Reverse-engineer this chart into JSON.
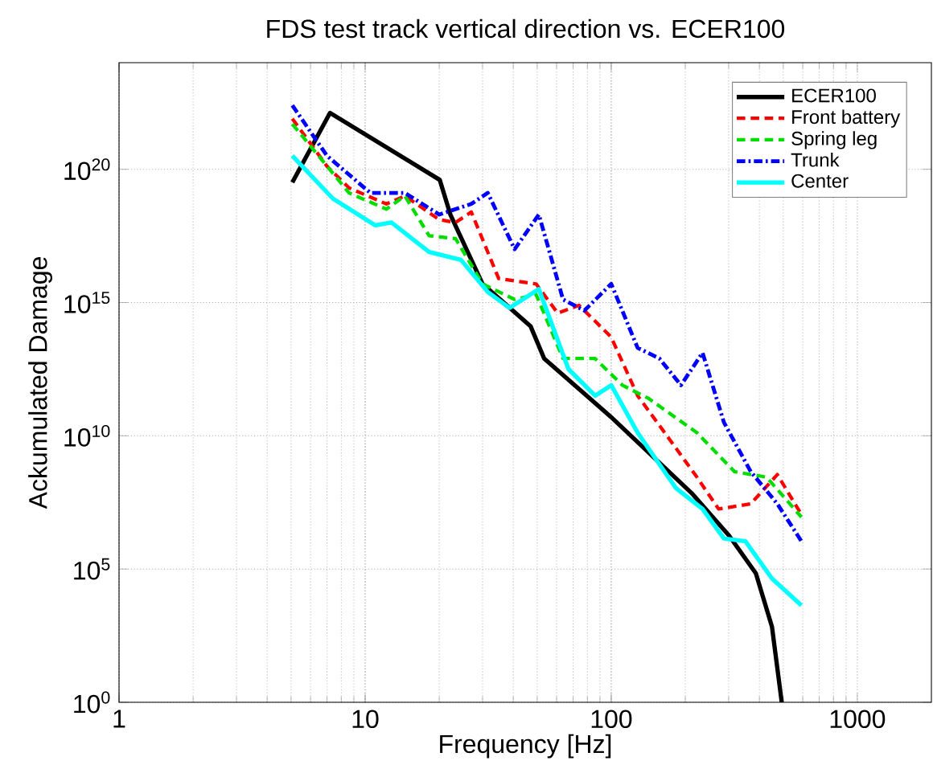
{
  "chart_data": {
    "type": "line",
    "title": "FDS test track vertical direction vs. ECER100",
    "xlabel": "Frequency [Hz]",
    "ylabel": "Ackumulated Damage",
    "log": "xy",
    "grid": true,
    "legend": "top right",
    "xlim": [
      1,
      2000
    ],
    "ylim": [
      1,
      1e+24
    ],
    "xticks": [
      1,
      10,
      100,
      1000
    ],
    "yticks": [
      {
        "value": 1,
        "label": "10$^{0}$"
      },
      {
        "value": 100000.0,
        "label": "10$^{5}$"
      },
      {
        "value": 10000000000.0,
        "label": "10$^{10}$"
      },
      {
        "value": 1000000000000000.0,
        "label": "10$^{15}$"
      },
      {
        "value": 1e+20,
        "label": "10$^{20}$"
      }
    ],
    "series": [
      {
        "name": "ECER100",
        "color": "#000000",
        "line_style": "solid",
        "x": [
          5.06,
          7.2,
          20.1,
          22.2,
          30,
          47,
          53.4,
          100,
          212,
          301,
          387,
          450,
          493
        ],
        "values": [
          3.2e+19,
          1.3e+22,
          4e+19,
          2e+18,
          5000000000000000.0,
          130000000000000.0,
          7900000000000.0,
          50000000000.0,
          71000000.0,
          1800000.0,
          69000.0,
          680,
          1
        ]
      },
      {
        "name": "Front battery",
        "color": "#ff0000",
        "line_style": "dashed",
        "x": [
          5.06,
          7.0,
          8.6,
          12.2,
          14.5,
          20,
          23.3,
          27,
          34.9,
          49.5,
          60.6,
          74,
          100,
          128,
          165,
          223,
          273,
          369,
          473,
          593
        ],
        "values": [
          7.9e+21,
          1.3e+20,
          2e+19,
          5e+18,
          1e+19,
          1.3e+18,
          1e+18,
          2.5e+18,
          7900000000000000.0,
          5000000000000000.0,
          400000000000000.0,
          790000000000000.0,
          50000000000000.0,
          320000000000.0,
          13000000000.0,
          280000000.0,
          18000000.0,
          28000000.0,
          350000000.0,
          11000000.0
        ]
      },
      {
        "name": "Spring leg",
        "color": "#00dd00",
        "line_style": "dashed",
        "x": [
          5.06,
          8.6,
          12.2,
          14.5,
          18.2,
          23.3,
          30,
          40.5,
          49.5,
          63.7,
          86,
          111,
          142,
          223,
          317,
          428,
          593
        ],
        "values": [
          5e+21,
          1.3e+19,
          3.2e+18,
          1e+19,
          3.2e+17,
          2.5e+17,
          5000000000000000.0,
          1300000000000000.0,
          2000000000000000.0,
          7900000000000.0,
          7900000000000.0,
          790000000000.0,
          250000000000.0,
          13000000000.0,
          450000000.0,
          280000000.0,
          8900000.0
        ]
      },
      {
        "name": "Trunk",
        "color": "#0000ff",
        "line_style": "dashdot",
        "x": [
          5.06,
          7.0,
          10.5,
          14.5,
          20,
          27,
          31.5,
          40.5,
          50.8,
          63.7,
          77.8,
          100,
          128,
          157,
          192,
          235,
          287,
          369,
          473,
          593
        ],
        "values": [
          2.5e+22,
          3.2e+20,
          1.3e+19,
          1.3e+19,
          2e+18,
          5e+18,
          1.3e+19,
          1e+17,
          2e+18,
          1300000000000000.0,
          500000000000000.0,
          5000000000000000.0,
          20000000000000.0,
          7900000000000.0,
          790000000000.0,
          13000000000000.0,
          32000000000.0,
          450000000.0,
          28000000.0,
          1100000.0
        ]
      },
      {
        "name": "Center",
        "color": "#00ffff",
        "line_style": "solid",
        "x": [
          5.06,
          7.4,
          11,
          12.8,
          18.2,
          24.5,
          31.5,
          38.6,
          50.8,
          67,
          86,
          100,
          128,
          183,
          235,
          287,
          351,
          450,
          593
        ],
        "values": [
          3.2e+20,
          7.9e+18,
          7.9e+17,
          1e+18,
          7.9e+16,
          4e+16,
          2500000000000000.0,
          630000000000000.0,
          3200000000000000.0,
          3200000000000.0,
          320000000000.0,
          790000000000.0,
          13000000000.0,
          110000000.0,
          18000000.0,
          1400000.0,
          1100000.0,
          44000.0,
          4300.0
        ]
      }
    ]
  }
}
